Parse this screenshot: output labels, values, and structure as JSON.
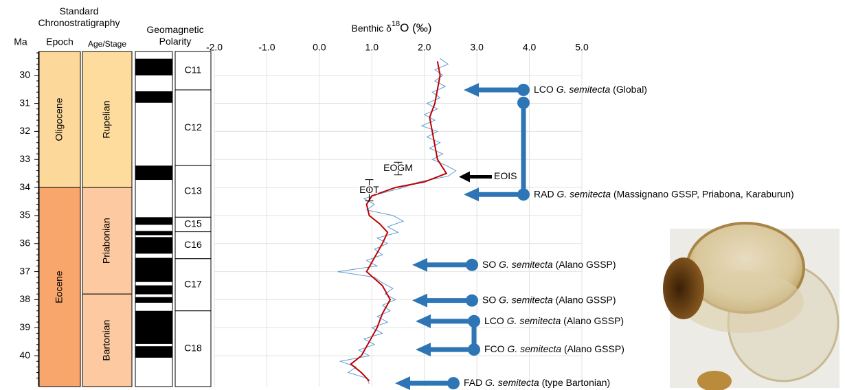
{
  "chart_data": {
    "type": "line",
    "title_parts": [
      "Benthic δ",
      "18",
      "O (‰)"
    ],
    "y_label": "Ma",
    "xlim": [
      -2,
      5
    ],
    "ylim": [
      29.15,
      41.1
    ],
    "y_inverted": true,
    "grid": true,
    "xticks": [
      {
        "value": -2,
        "label": "-2.0"
      },
      {
        "value": -1,
        "label": "-1.0"
      },
      {
        "value": 0,
        "label": "0.0"
      },
      {
        "value": 1,
        "label": "1.0"
      },
      {
        "value": 2,
        "label": "2.0"
      },
      {
        "value": 3,
        "label": "3.0"
      },
      {
        "value": 4,
        "label": "4.0"
      },
      {
        "value": 5,
        "label": "5.0"
      }
    ],
    "yticks": [
      30,
      31,
      32,
      33,
      34,
      35,
      36,
      37,
      38,
      39,
      40
    ],
    "series": [
      {
        "color": "#5b9bd5",
        "x": [
          29.4,
          29.6,
          29.8,
          30.0,
          30.2,
          30.4,
          30.6,
          30.8,
          31.0,
          31.2,
          31.4,
          31.6,
          31.8,
          32.0,
          32.2,
          32.4,
          32.6,
          32.8,
          33.0,
          33.2,
          33.4,
          33.6,
          33.8,
          34.0,
          34.2,
          34.4,
          34.6,
          34.8,
          35.0,
          35.2,
          35.4,
          35.6,
          35.8,
          36.0,
          36.2,
          36.4,
          36.6,
          36.8,
          37.0,
          37.2,
          37.4,
          37.6,
          37.8,
          38.0,
          38.2,
          38.4,
          38.6,
          38.8,
          39.0,
          39.2,
          39.4,
          39.6,
          39.8,
          40.0,
          40.2,
          40.4,
          40.6,
          40.8,
          41.0
        ],
        "values": [
          2.3,
          2.45,
          2.2,
          2.35,
          2.2,
          2.4,
          2.15,
          2.3,
          2.05,
          2.25,
          2.0,
          2.2,
          1.95,
          2.25,
          2.05,
          2.3,
          2.1,
          2.35,
          2.15,
          2.4,
          2.6,
          2.45,
          1.9,
          1.6,
          1.2,
          0.85,
          1.05,
          0.9,
          1.4,
          1.6,
          1.3,
          1.5,
          1.1,
          1.3,
          1.05,
          1.2,
          0.9,
          1.1,
          0.35,
          1.05,
          1.2,
          1.4,
          1.25,
          1.45,
          1.2,
          1.35,
          1.1,
          1.3,
          1.0,
          1.2,
          0.85,
          1.05,
          0.75,
          0.95,
          0.4,
          0.7,
          0.55,
          0.9,
          0.95
        ]
      },
      {
        "color": "#c00000",
        "x": [
          29.5,
          30,
          30.5,
          31,
          31.5,
          32,
          32.5,
          33,
          33.5,
          33.8,
          34,
          34.3,
          34.6,
          35,
          35.3,
          35.6,
          36,
          36.5,
          37,
          37.5,
          38,
          38.5,
          39,
          39.5,
          40,
          40.3,
          40.6,
          40.9
        ],
        "values": [
          2.25,
          2.3,
          2.25,
          2.2,
          2.1,
          2.15,
          2.2,
          2.25,
          2.42,
          2.0,
          1.45,
          1.0,
          0.9,
          0.95,
          1.15,
          1.3,
          1.2,
          1.05,
          0.9,
          1.2,
          1.35,
          1.2,
          1.1,
          0.95,
          0.8,
          0.6,
          0.8,
          0.95
        ]
      }
    ],
    "error_bars": [
      {
        "label": "EOGM",
        "x": 1.5,
        "y": [
          33.1,
          33.55
        ]
      },
      {
        "label": "EOT",
        "x": 0.95,
        "y": [
          33.72,
          34.48
        ]
      }
    ],
    "eois": {
      "label": "EOIS",
      "ma": 33.62
    },
    "events": [
      {
        "prefix": "LCO",
        "species": "G. semitecta",
        "suffix": "(Global)",
        "ma": 30.52
      },
      {
        "prefix": "RAD",
        "species": "G. semitecta",
        "suffix": "(Massignano GSSP, Priabona, Karaburun)",
        "ma": 34.25,
        "range_to": 30.98
      },
      {
        "prefix": "SO",
        "species": "G. semitecta",
        "suffix": "(Alano GSSP)",
        "ma": 36.76
      },
      {
        "prefix": "SO",
        "species": "G. semitecta",
        "suffix": "(Alano GSSP)",
        "ma": 38.03
      },
      {
        "prefix": "LCO",
        "species": "G. semitecta",
        "suffix": "(Alano GSSP)",
        "ma": 38.77
      },
      {
        "prefix": "FCO",
        "species": "G. semitecta",
        "suffix": "(Alano GSSP)",
        "ma": 39.78,
        "range_to": 38.77
      },
      {
        "prefix": "FAD",
        "species": "G. semitecta",
        "suffix": "(type Bartonian)",
        "ma": 40.98
      }
    ]
  },
  "stratigraphy": {
    "header": "Standard Chronostratigraphy",
    "epoch_header": "Epoch",
    "stage_header": "Age/Stage",
    "polarity_header": "Geomagnetic Polarity",
    "epochs": [
      {
        "name": "Oligocene",
        "top": 29.15,
        "base": 34.0,
        "color": "#fdd89b"
      },
      {
        "name": "Eocene",
        "top": 34.0,
        "base": 41.1,
        "color": "#f9a66c"
      }
    ],
    "stages": [
      {
        "name": "Rupelian",
        "top": 29.15,
        "base": 34.0,
        "color": "#fedc9e"
      },
      {
        "name": "Priabonian",
        "top": 34.0,
        "base": 37.8,
        "color": "#fcc9a0"
      },
      {
        "name": "Bartonian",
        "top": 37.8,
        "base": 41.1,
        "color": "#fcc9a0"
      }
    ],
    "normal_polarity": [
      [
        29.41,
        30.0
      ],
      [
        30.57,
        30.98
      ],
      [
        33.22,
        33.73
      ],
      [
        35.06,
        35.33
      ],
      [
        35.55,
        35.7
      ],
      [
        35.77,
        36.36
      ],
      [
        36.51,
        37.37
      ],
      [
        37.49,
        37.81
      ],
      [
        37.91,
        38.11
      ],
      [
        38.4,
        39.58
      ],
      [
        39.66,
        40.07
      ]
    ],
    "chrons": [
      {
        "name": "C11",
        "top": 29.15,
        "base": 30.52
      },
      {
        "name": "C12",
        "top": 30.52,
        "base": 33.22
      },
      {
        "name": "C13",
        "top": 33.22,
        "base": 35.06
      },
      {
        "name": "C15",
        "top": 35.06,
        "base": 35.58
      },
      {
        "name": "C16",
        "top": 35.58,
        "base": 36.54
      },
      {
        "name": "C17",
        "top": 36.54,
        "base": 38.4
      },
      {
        "name": "C18",
        "top": 38.4,
        "base": 41.1
      }
    ]
  }
}
